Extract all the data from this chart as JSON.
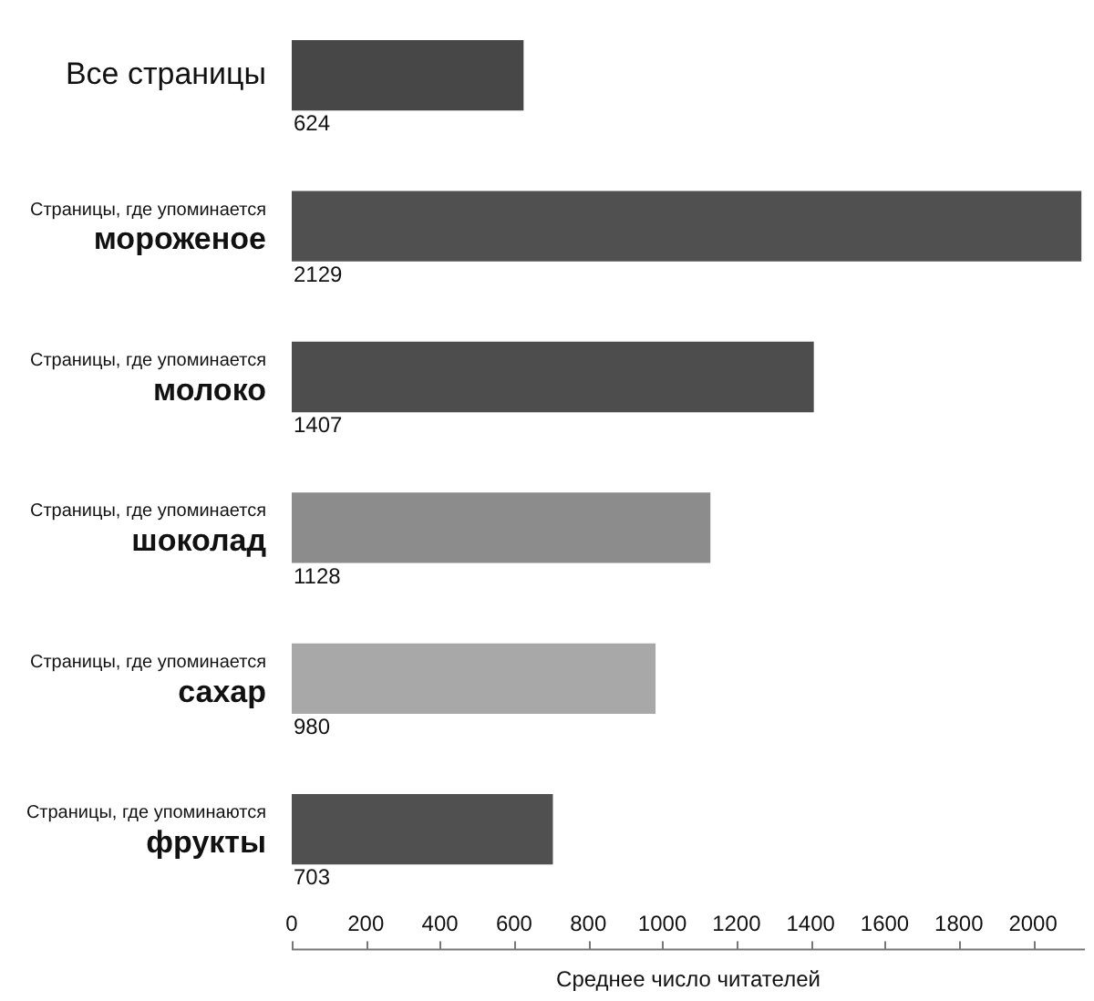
{
  "chart_data": {
    "type": "bar",
    "orientation": "horizontal",
    "categories": [
      "Все страницы",
      "Страницы, где упоминается\nмороженое",
      "Страницы, где упоминается\nмолоко",
      "Страницы, где упоминается\nшоколад",
      "Страницы, где упоминается\nсахар",
      "Страницы, где упоминаются\nфрукты"
    ],
    "values": [
      624,
      2129,
      1407,
      1128,
      980,
      703
    ],
    "colors": [
      "#474747",
      "#505050",
      "#4d4d4d",
      "#8c8c8c",
      "#a8a8a8",
      "#505050"
    ],
    "xlabel": "Среднее число читателей",
    "xlim": [
      0,
      2140
    ],
    "xticks": [
      0,
      200,
      400,
      600,
      800,
      1000,
      1200,
      1400,
      1600,
      1800,
      2000
    ],
    "data_labels": true
  }
}
